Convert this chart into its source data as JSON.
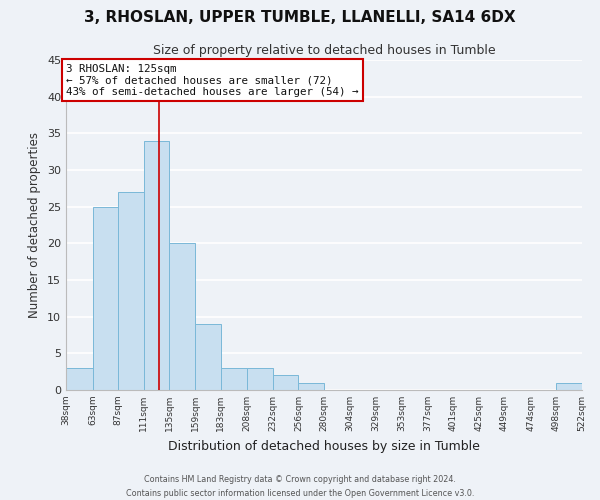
{
  "title": "3, RHOSLAN, UPPER TUMBLE, LLANELLI, SA14 6DX",
  "subtitle": "Size of property relative to detached houses in Tumble",
  "xlabel": "Distribution of detached houses by size in Tumble",
  "ylabel": "Number of detached properties",
  "bar_color": "#c8dff0",
  "bar_edge_color": "#7ab8d8",
  "bin_edges": [
    38,
    63,
    87,
    111,
    135,
    159,
    183,
    208,
    232,
    256,
    280,
    304,
    329,
    353,
    377,
    401,
    425,
    449,
    474,
    498,
    522
  ],
  "bin_labels": [
    "38sqm",
    "63sqm",
    "87sqm",
    "111sqm",
    "135sqm",
    "159sqm",
    "183sqm",
    "208sqm",
    "232sqm",
    "256sqm",
    "280sqm",
    "304sqm",
    "329sqm",
    "353sqm",
    "377sqm",
    "401sqm",
    "425sqm",
    "449sqm",
    "474sqm",
    "498sqm",
    "522sqm"
  ],
  "counts": [
    3,
    25,
    27,
    34,
    20,
    9,
    3,
    3,
    2,
    1,
    0,
    0,
    0,
    0,
    0,
    0,
    0,
    0,
    0,
    1
  ],
  "ylim": [
    0,
    45
  ],
  "yticks": [
    0,
    5,
    10,
    15,
    20,
    25,
    30,
    35,
    40,
    45
  ],
  "property_size": 125,
  "annotation_title": "3 RHOSLAN: 125sqm",
  "annotation_line1": "← 57% of detached houses are smaller (72)",
  "annotation_line2": "43% of semi-detached houses are larger (54) →",
  "annotation_box_color": "#ffffff",
  "annotation_box_edge": "#cc0000",
  "property_line_x": 125,
  "footer_line1": "Contains HM Land Registry data © Crown copyright and database right 2024.",
  "footer_line2": "Contains public sector information licensed under the Open Government Licence v3.0.",
  "background_color": "#eef2f7",
  "grid_color": "#ffffff"
}
